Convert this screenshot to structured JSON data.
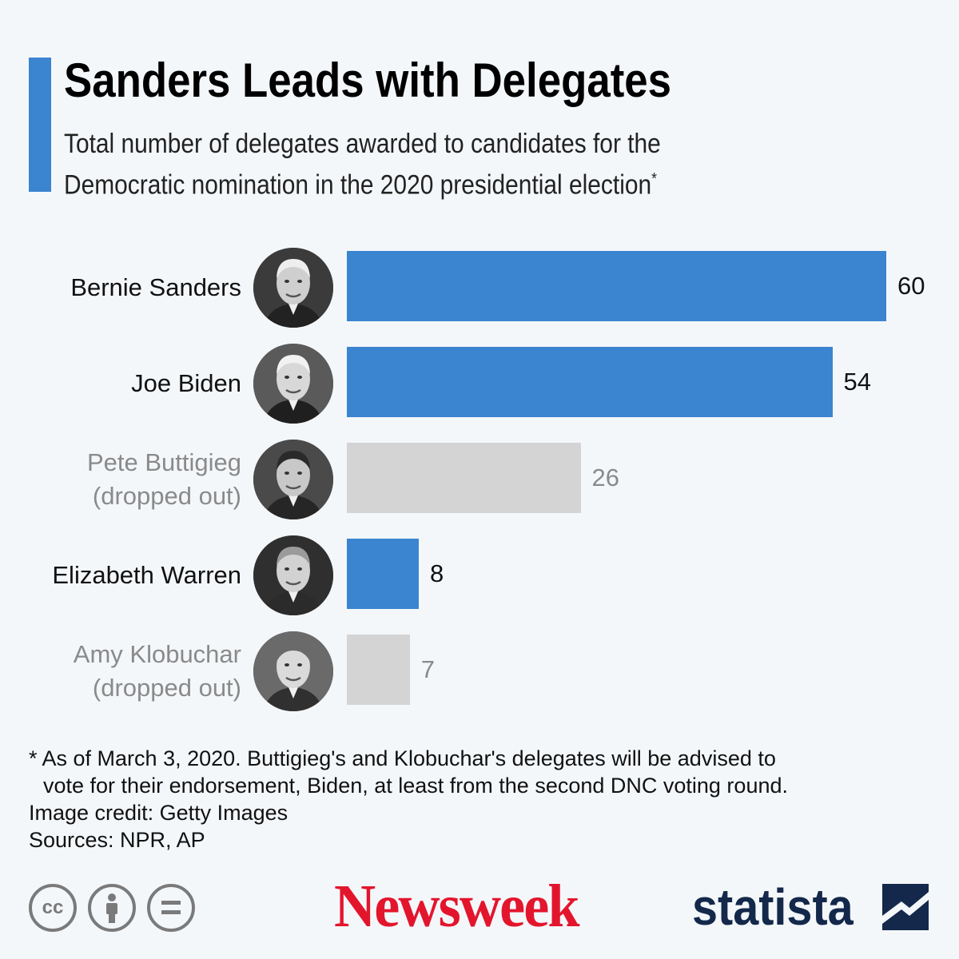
{
  "header": {
    "title": "Sanders Leads with Delegates",
    "subtitle": "Total number of delegates awarded to candidates for the Democratic nomination in the 2020 presidential election",
    "subtitle_mark": "*"
  },
  "chart_data": {
    "type": "bar",
    "orientation": "horizontal",
    "xlim": [
      0,
      60
    ],
    "grid": false,
    "legend": "none",
    "rows": [
      {
        "label": "Bernie Sanders",
        "note": "",
        "value": 60,
        "status": "active"
      },
      {
        "label": "Joe Biden",
        "note": "",
        "value": 54,
        "status": "active"
      },
      {
        "label": "Pete Buttigieg",
        "note": "(dropped out)",
        "value": 26,
        "status": "dropped"
      },
      {
        "label": "Elizabeth Warren",
        "note": "",
        "value": 8,
        "status": "active"
      },
      {
        "label": "Amy Klobuchar",
        "note": "(dropped out)",
        "value": 7,
        "status": "dropped"
      }
    ]
  },
  "colors": {
    "active_bar": "#3a84d0",
    "dropped_bar": "#d4d4d4",
    "active_text": "#111111",
    "dropped_text": "#8a8a8a",
    "accent": "#3a84d0",
    "newsweek": "#e3152d",
    "statista": "#13284a"
  },
  "footnote": {
    "line1": "* As of March 3, 2020. Buttigieg's and Klobuchar's delegates will be advised to",
    "line2": "vote for their endorsement, Biden, at least from the second DNC voting round.",
    "credit": "Image credit: Getty Images",
    "sources": "Sources: NPR, AP"
  },
  "branding": {
    "newsweek": "Newsweek",
    "statista": "statista",
    "license_icons": [
      "cc-icon",
      "by-icon",
      "nd-icon"
    ],
    "cc_text": "cc"
  }
}
